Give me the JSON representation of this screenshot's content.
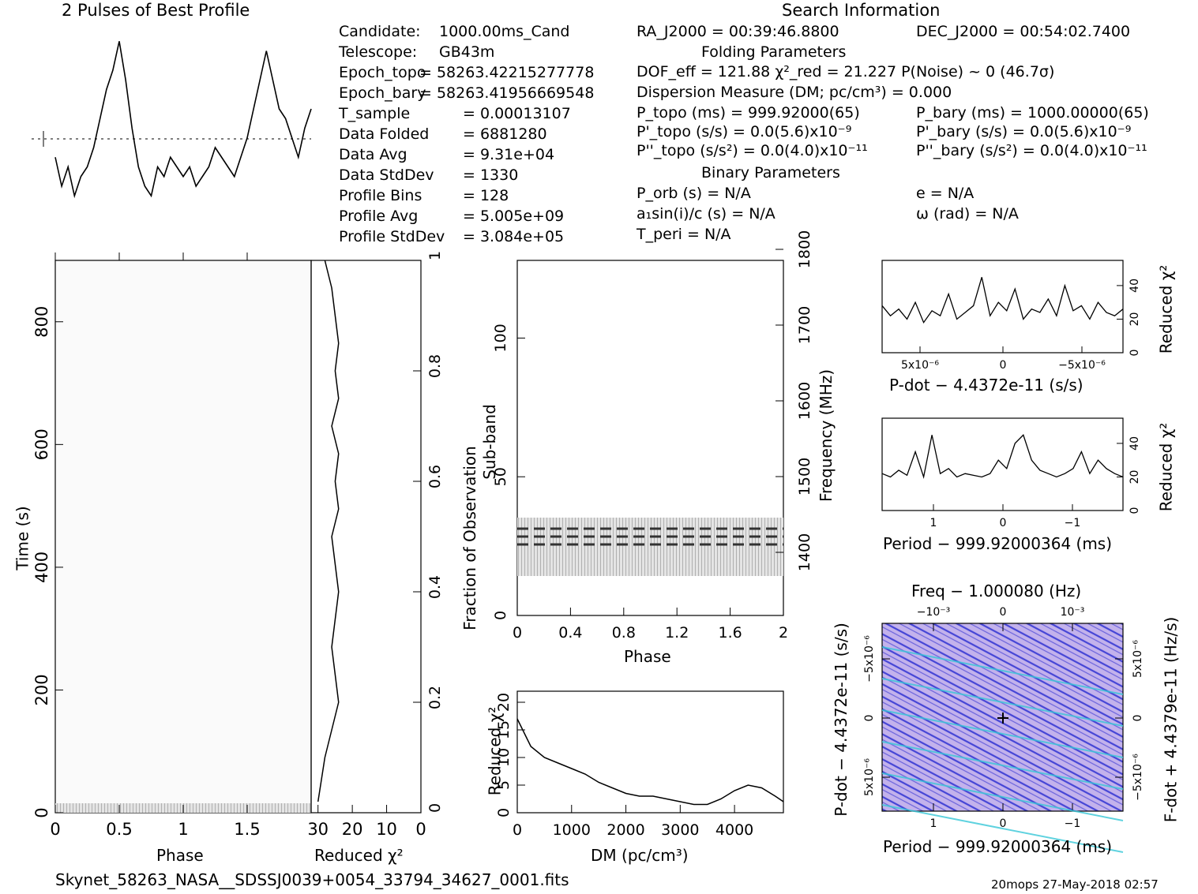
{
  "header": {
    "profile_title": "2 Pulses of Best Profile",
    "search_title": "Search Information",
    "folding_title": "Folding Parameters",
    "binary_title": "Binary Parameters"
  },
  "info_col1": [
    {
      "k": "Candidate:",
      "v": "1000.00ms_Cand"
    },
    {
      "k": "Telescope:",
      "v": "GB43m"
    },
    {
      "k": "Epoch_topo",
      "v": "= 58263.42215277778"
    },
    {
      "k": "Epoch_bary",
      "v": "= 58263.41956669548"
    },
    {
      "k": "T_sample",
      "v": "=   0.00013107"
    },
    {
      "k": "Data Folded",
      "v": "=   6881280"
    },
    {
      "k": "Data Avg",
      "v": "=   9.31e+04"
    },
    {
      "k": "Data StdDev",
      "v": "=   1330"
    },
    {
      "k": "Profile Bins",
      "v": "=   128"
    },
    {
      "k": "Profile Avg",
      "v": "=   5.005e+09"
    },
    {
      "k": "Profile StdDev",
      "v": "=   3.084e+05"
    }
  ],
  "info_col2": {
    "ra": "RA_J2000 = 00:39:46.8800",
    "dof": "DOF_eff = 121.88  χ²_red = 21.227  P(Noise) ~ 0   (46.7σ)",
    "dm": "Dispersion Measure (DM; pc/cm³) = 0.000",
    "p_topo": "P_topo (ms) =  999.92000(65)",
    "pd_topo": "P'_topo (s/s) = 0.0(5.6)x10⁻⁹",
    "pdd_topo": "P''_topo (s/s²) = 0.0(4.0)x10⁻¹¹",
    "p_orb": "P_orb (s) = N/A",
    "a1": "a₁sin(i)/c (s) = N/A",
    "t_peri": "T_peri = N/A"
  },
  "info_col3": {
    "dec": "DEC_J2000 = 00:54:02.7400",
    "p_bary": "P_bary (ms) =  1000.00000(65)",
    "pd_bary": "P'_bary (s/s) = 0.0(5.6)x10⁻⁹",
    "pdd_bary": "P''_bary (s/s²) = 0.0(4.0)x10⁻¹¹",
    "e": "e = N/A",
    "omega": "ω (rad) = N/A"
  },
  "footer": {
    "filename": "Skynet_58263_NASA__SDSSJ0039+0054_33794_34627_0001.fits",
    "stamp": "20mops 27-May-2018 02:57"
  },
  "colors": {
    "ink": "#000000",
    "pp_bg": "#b9a6e6",
    "pp_fg": "#3a3ad0",
    "pp_hi": "#38c8d8"
  },
  "chart_data": [
    {
      "type": "line",
      "name": "profile",
      "title": "2 Pulses of Best Profile",
      "x": [
        0,
        0.05,
        0.1,
        0.15,
        0.2,
        0.25,
        0.3,
        0.35,
        0.4,
        0.45,
        0.5,
        0.55,
        0.6,
        0.65,
        0.7,
        0.75,
        0.8,
        0.85,
        0.9,
        0.95,
        1.0,
        1.05,
        1.1,
        1.15,
        1.2,
        1.25,
        1.3,
        1.35,
        1.4,
        1.45,
        1.5,
        1.55,
        1.6,
        1.65,
        1.7,
        1.75,
        1.8,
        1.85,
        1.9,
        1.95,
        2.0
      ],
      "y": [
        0.35,
        0.2,
        0.3,
        0.15,
        0.25,
        0.3,
        0.4,
        0.55,
        0.7,
        0.8,
        0.95,
        0.75,
        0.5,
        0.3,
        0.2,
        0.15,
        0.3,
        0.25,
        0.35,
        0.3,
        0.25,
        0.3,
        0.2,
        0.25,
        0.3,
        0.4,
        0.35,
        0.3,
        0.25,
        0.35,
        0.45,
        0.6,
        0.75,
        0.9,
        0.75,
        0.6,
        0.55,
        0.45,
        0.35,
        0.5,
        0.6
      ]
    },
    {
      "type": "heatmap",
      "name": "time-phase",
      "xlabel": "Phase",
      "ylabel": "Time (s)",
      "y2label": "Fraction of Observation",
      "xticks": [
        "0",
        "0.5",
        "1",
        "1.5"
      ],
      "yticks": [
        "0",
        "200",
        "400",
        "600",
        "800"
      ],
      "y2ticks": [
        "0",
        "0.2",
        "0.4",
        "0.6",
        "0.8",
        "1"
      ],
      "xlim": [
        0,
        2
      ],
      "ylim": [
        0,
        900
      ]
    },
    {
      "type": "line",
      "name": "time-chi2",
      "xlabel": "Reduced χ²",
      "xticks": [
        "30",
        "20",
        "10",
        "0"
      ],
      "x": [
        28,
        26,
        25,
        24,
        25,
        24,
        26,
        24,
        25,
        24,
        26,
        25,
        24,
        25,
        26,
        25,
        24,
        26,
        28,
        30
      ],
      "y": [
        1.0,
        0.95,
        0.9,
        0.85,
        0.8,
        0.75,
        0.7,
        0.65,
        0.6,
        0.55,
        0.5,
        0.45,
        0.4,
        0.35,
        0.3,
        0.25,
        0.2,
        0.15,
        0.1,
        0.02
      ]
    },
    {
      "type": "heatmap",
      "name": "subband-phase",
      "xlabel": "Phase",
      "ylabel": "Sub-band",
      "y2label": "Frequency (MHz)",
      "xticks": [
        "0",
        "0.4",
        "0.8",
        "1.2",
        "1.6",
        "2"
      ],
      "yticks": [
        "0",
        "50",
        "100"
      ],
      "y2ticks": [
        "1400",
        "1500",
        "1600",
        "1700",
        "1800"
      ],
      "xlim": [
        0,
        2
      ],
      "ylim": [
        0,
        128
      ]
    },
    {
      "type": "line",
      "name": "dm-chi2",
      "xlabel": "DM (pc/cm³)",
      "ylabel": "Reduced χ²",
      "xticks": [
        "0",
        "1000",
        "2000",
        "3000",
        "4000"
      ],
      "yticks": [
        "0",
        "5",
        "10",
        "15",
        "20"
      ],
      "x": [
        0,
        250,
        500,
        750,
        1000,
        1250,
        1500,
        1750,
        2000,
        2250,
        2500,
        2750,
        3000,
        3250,
        3500,
        3750,
        4000,
        4250,
        4500,
        4750,
        4900
      ],
      "y": [
        17,
        12,
        10,
        9,
        8,
        7,
        5.5,
        4.5,
        3.5,
        3,
        3,
        2.5,
        2,
        1.5,
        1.5,
        2.5,
        4,
        5,
        4.5,
        3,
        2
      ],
      "xlim": [
        0,
        4900
      ],
      "ylim": [
        0,
        22
      ]
    },
    {
      "type": "line",
      "name": "pdot-chi2",
      "xlabel": "P-dot − 4.4372e-11 (s/s)",
      "ylabel": "Reduced χ²",
      "xticks": [
        "5x10⁻⁶",
        "0",
        "−5x10⁻⁶"
      ],
      "yticks": [
        "0",
        "20",
        "40"
      ],
      "y": [
        28,
        22,
        26,
        20,
        30,
        18,
        25,
        22,
        35,
        20,
        24,
        28,
        45,
        22,
        30,
        25,
        38,
        20,
        26,
        24,
        32,
        22,
        40,
        25,
        28,
        20,
        30,
        24,
        22,
        26
      ],
      "ylim": [
        0,
        55
      ]
    },
    {
      "type": "line",
      "name": "period-chi2",
      "xlabel": "Period − 999.92000364 (ms)",
      "ylabel": "Reduced χ²",
      "xticks": [
        "1",
        "0",
        "−1"
      ],
      "yticks": [
        "0",
        "20",
        "40"
      ],
      "y": [
        22,
        20,
        24,
        21,
        35,
        20,
        45,
        22,
        25,
        20,
        22,
        21,
        20,
        22,
        30,
        25,
        40,
        45,
        30,
        24,
        22,
        20,
        22,
        25,
        35,
        22,
        30,
        25,
        22,
        20
      ],
      "ylim": [
        0,
        55
      ]
    },
    {
      "type": "heatmap",
      "name": "period-pdot",
      "title": "Freq − 1.000080 (Hz)",
      "xlabel": "Period − 999.92000364 (ms)",
      "ylabel": "P-dot − 4.4372e-11 (s/s)",
      "y2label": "F-dot + 4.4379e-11 (Hz/s)",
      "xticks": [
        "1",
        "0",
        "−1"
      ],
      "x2ticks": [
        "−10⁻³",
        "0",
        "10⁻³"
      ],
      "yticks": [
        "−5x10⁻⁶",
        "0",
        "5x10⁻⁶"
      ],
      "y2ticks": [
        "5x10⁻⁶",
        "0",
        "−5x10⁻⁶"
      ]
    }
  ]
}
